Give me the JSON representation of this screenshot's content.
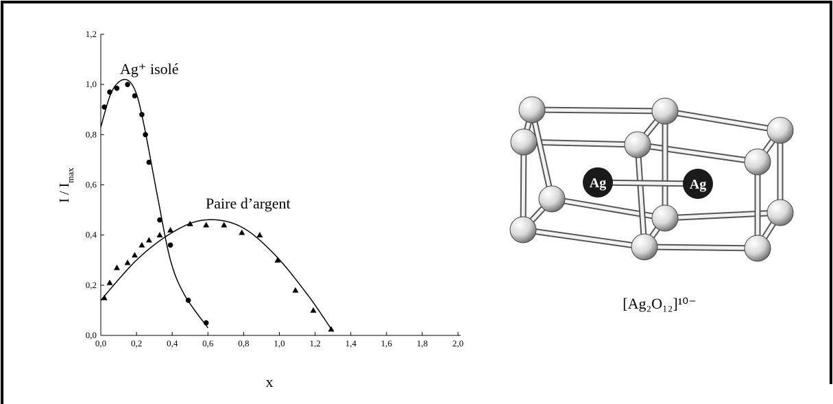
{
  "chart_data": {
    "type": "scatter",
    "y_label": "I / I",
    "y_label_subscript": "max",
    "x_label": "x",
    "xlim": [
      0,
      2
    ],
    "ylim": [
      0,
      1.2
    ],
    "xticks": [
      {
        "value": 0,
        "label": "0,0"
      },
      {
        "value": 0.2,
        "label": "0,2"
      },
      {
        "value": 0.4,
        "label": "0,4"
      },
      {
        "value": 0.6,
        "label": "0,6"
      },
      {
        "value": 0.8,
        "label": "0,8"
      },
      {
        "value": 1,
        "label": "1,0"
      },
      {
        "value": 1.2,
        "label": "1,2"
      },
      {
        "value": 1.4,
        "label": "1,4"
      },
      {
        "value": 1.6,
        "label": "1,6"
      },
      {
        "value": 1.8,
        "label": "1,8"
      },
      {
        "value": 2,
        "label": "2,0"
      }
    ],
    "yticks": [
      {
        "value": 0,
        "label": "0,0"
      },
      {
        "value": 0.2,
        "label": "0,2"
      },
      {
        "value": 0.4,
        "label": "0,4"
      },
      {
        "value": 0.6,
        "label": "0,6"
      },
      {
        "value": 0.8,
        "label": "0,8"
      },
      {
        "value": 1,
        "label": "1,0"
      },
      {
        "value": 1.2,
        "label": "1,2"
      }
    ],
    "series": [
      {
        "name": "Ag⁺ isolé",
        "color": "#000000",
        "marker": "circle",
        "x": [
          0.02,
          0.05,
          0.09,
          0.15,
          0.19,
          0.23,
          0.25,
          0.27,
          0.33,
          0.39,
          0.49,
          0.59
        ],
        "values": [
          0.91,
          0.97,
          0.985,
          1.0,
          0.955,
          0.88,
          0.8,
          0.69,
          0.46,
          0.36,
          0.14,
          0.05
        ],
        "fit": {
          "x": [
            0,
            0.06,
            0.13,
            0.19,
            0.24,
            0.32,
            0.39,
            0.47,
            0.6
          ],
          "values": [
            0.83,
            0.97,
            1.02,
            0.98,
            0.845,
            0.545,
            0.3,
            0.16,
            0.03
          ]
        }
      },
      {
        "name": "Paire d’argent",
        "color": "#000000",
        "marker": "triangle",
        "x": [
          0.02,
          0.05,
          0.09,
          0.15,
          0.19,
          0.23,
          0.27,
          0.33,
          0.39,
          0.5,
          0.59,
          0.69,
          0.79,
          0.89,
          0.99,
          1.09,
          1.19,
          1.29
        ],
        "values": [
          0.15,
          0.21,
          0.27,
          0.29,
          0.32,
          0.36,
          0.38,
          0.4,
          0.42,
          0.445,
          0.44,
          0.44,
          0.41,
          0.4,
          0.3,
          0.18,
          0.1,
          0.025
        ],
        "fit": {
          "x": [
            0,
            0.2,
            0.4,
            0.58,
            0.78,
            0.97,
            1.16,
            1.3
          ],
          "values": [
            0.14,
            0.3,
            0.41,
            0.46,
            0.435,
            0.325,
            0.16,
            0.015
          ]
        }
      }
    ]
  },
  "diagram": {
    "atom_labels": [
      "Ag",
      "Ag"
    ],
    "caption": "[Ag₂O₁₂]¹⁰⁻"
  }
}
